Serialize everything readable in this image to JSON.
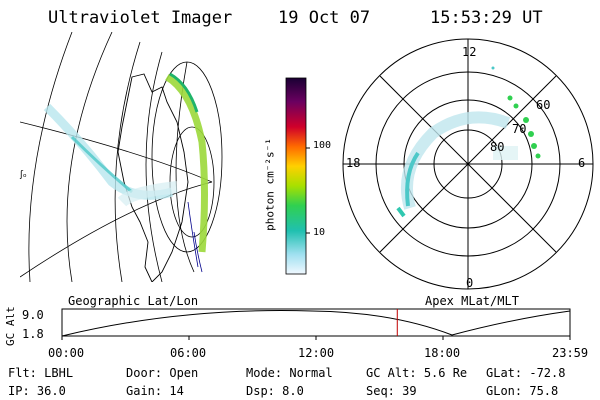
{
  "header": {
    "instrument": "Ultraviolet Imager",
    "date": "19 Oct 07",
    "time": "15:53:29 UT"
  },
  "colorbar": {
    "unit_label": "photon cm⁻²s⁻¹",
    "ticks": [
      "100",
      "10"
    ]
  },
  "polar_plot": {
    "mlt_labels": [
      "12",
      "18",
      "6",
      "0"
    ],
    "lat_labels": [
      "60",
      "70",
      "80"
    ]
  },
  "geo_plot": {
    "marker_glyph": "ʃₒ"
  },
  "timeline": {
    "left_title": "Geographic Lat/Lon",
    "right_title": "Apex MLat/MLT",
    "axis_label": "GC Alt",
    "y_ticks": [
      "9.0",
      "1.8"
    ],
    "x_ticks": [
      "00:00",
      "06:00",
      "12:00",
      "18:00",
      "23:59"
    ],
    "current_time_fraction": 0.66
  },
  "info": {
    "row1": [
      {
        "key": "Flt:",
        "value": "LBHL"
      },
      {
        "key": "Door:",
        "value": "Open"
      },
      {
        "key": "Mode:",
        "value": "Normal"
      },
      {
        "key": "GC Alt:",
        "value": "5.6 Re"
      },
      {
        "key": "GLat:",
        "value": "-72.8"
      }
    ],
    "row2": [
      {
        "key": "IP:",
        "value": "36.0"
      },
      {
        "key": "Gain:",
        "value": "14"
      },
      {
        "key": "Dsp:",
        "value": "8.0"
      },
      {
        "key": "Seq:",
        "value": "39"
      },
      {
        "key": "GLon:",
        "value": "75.8"
      }
    ]
  }
}
